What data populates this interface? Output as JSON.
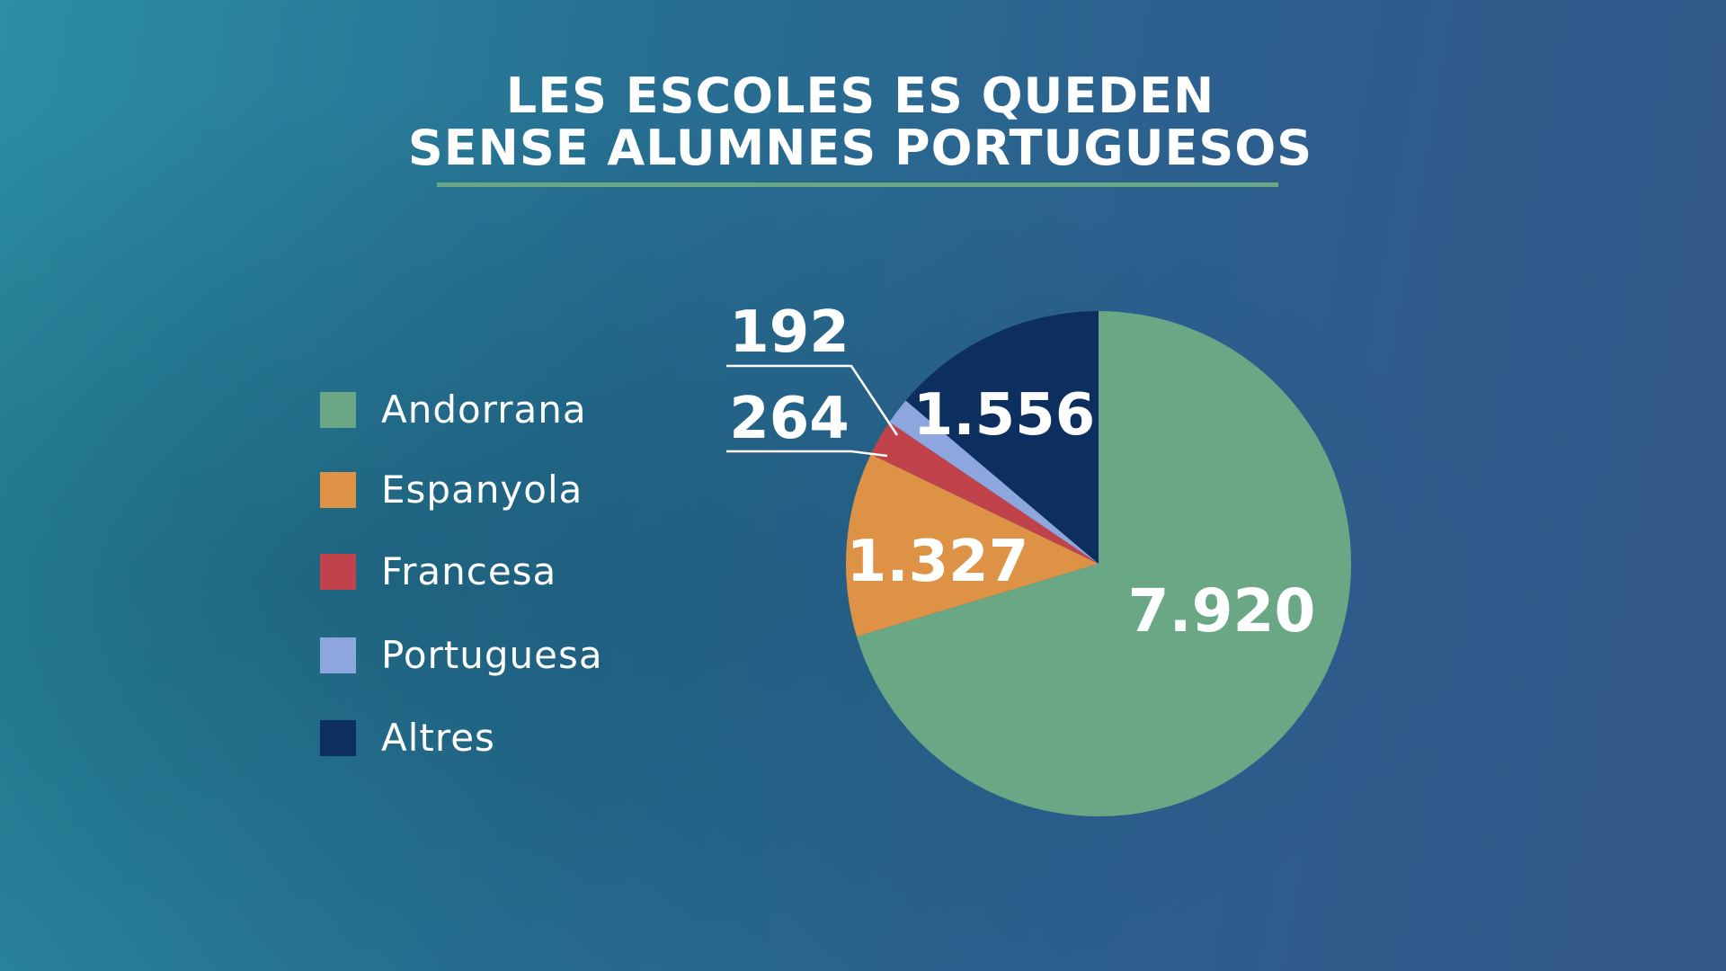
{
  "title_line1": "LES ESCOLES ES QUEDEN",
  "title_line2": "SENSE ALUMNES PORTUGUESOS",
  "chart_data": {
    "type": "pie",
    "title": "LES ESCOLES ES QUEDEN SENSE ALUMNES PORTUGUESOS",
    "legend_position": "left",
    "categories": [
      "Andorrana",
      "Espanyola",
      "Francesa",
      "Portuguesa",
      "Altres"
    ],
    "values": [
      7920,
      1327,
      264,
      192,
      1556
    ],
    "data_labels": [
      "7.920",
      "1.327",
      "264",
      "192",
      "1.556"
    ],
    "colors": [
      "#6aa785",
      "#dd9245",
      "#c0434b",
      "#8ea6de",
      "#0d2f5f"
    ]
  }
}
